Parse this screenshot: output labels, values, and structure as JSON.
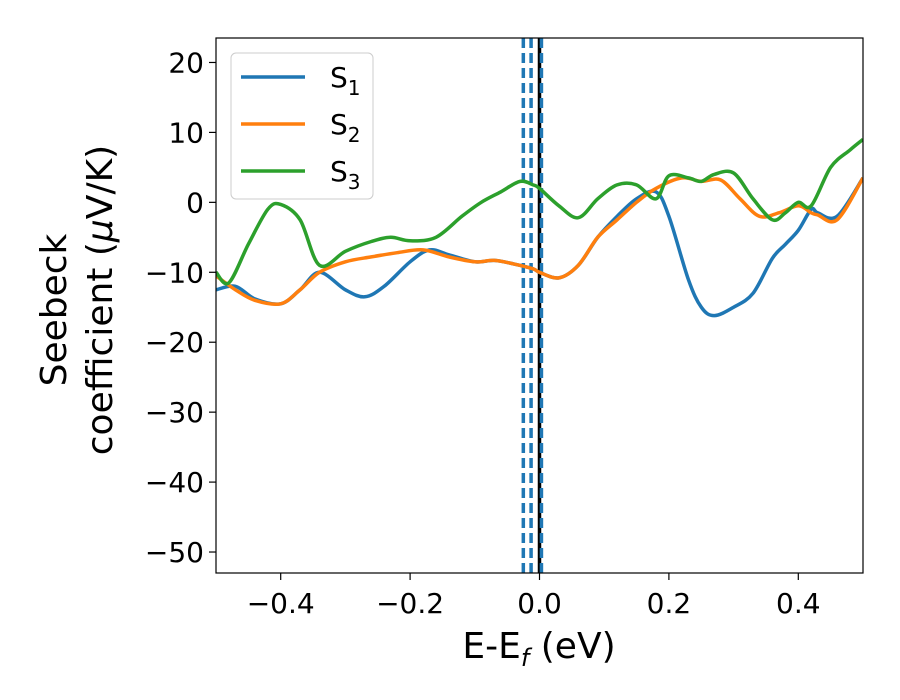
{
  "chart_data": {
    "type": "line",
    "xlabel": {
      "main": "E-E",
      "sub": "f",
      "rest": " (eV)"
    },
    "ylabel": {
      "line1": "Seebeck",
      "line2a": "coefficient  (",
      "line2mu": "μ",
      "line2b": "V/K)"
    },
    "xlim": [
      -0.5,
      0.5
    ],
    "ylim": [
      -53,
      23.5
    ],
    "xticks": [
      -0.4,
      -0.2,
      0.0,
      0.2,
      0.4
    ],
    "xtick_labels": [
      "−0.4",
      "−0.2",
      "0.0",
      "0.2",
      "0.4"
    ],
    "yticks": [
      20,
      10,
      0,
      -10,
      -20,
      -30,
      -40,
      -50
    ],
    "ytick_labels": [
      "20",
      "10",
      "0",
      "−10",
      "−20",
      "−30",
      "−40",
      "−50"
    ],
    "legend_position": "top-left",
    "series": [
      {
        "name": "S",
        "sub": "1",
        "color": "#1f77b4",
        "x": [
          -0.5,
          -0.47,
          -0.44,
          -0.4,
          -0.37,
          -0.34,
          -0.3,
          -0.27,
          -0.24,
          -0.2,
          -0.17,
          -0.14,
          -0.1,
          -0.07,
          -0.04,
          -0.01,
          0.0,
          0.03,
          0.06,
          0.09,
          0.12,
          0.15,
          0.18,
          0.2,
          0.23,
          0.25,
          0.27,
          0.3,
          0.33,
          0.36,
          0.38,
          0.4,
          0.42,
          0.43,
          0.46,
          0.5
        ],
        "y": [
          -12.5,
          -12.0,
          -13.8,
          -14.5,
          -12.5,
          -10.0,
          -12.5,
          -13.5,
          -12.0,
          -8.5,
          -6.8,
          -7.5,
          -8.5,
          -8.3,
          -8.8,
          -9.5,
          -10.0,
          -10.8,
          -9.0,
          -5.0,
          -2.0,
          0.5,
          1.5,
          -2.0,
          -11.0,
          -15.0,
          -16.2,
          -15.0,
          -13.0,
          -8.0,
          -6.0,
          -4.0,
          -1.0,
          -1.5,
          -2.0,
          3.5
        ]
      },
      {
        "name": "S",
        "sub": "2",
        "color": "#ff7f0e",
        "x": [
          -0.5,
          -0.47,
          -0.44,
          -0.4,
          -0.37,
          -0.34,
          -0.3,
          -0.26,
          -0.22,
          -0.18,
          -0.14,
          -0.1,
          -0.07,
          -0.04,
          -0.01,
          0.0,
          0.03,
          0.06,
          0.09,
          0.12,
          0.15,
          0.18,
          0.22,
          0.25,
          0.28,
          0.31,
          0.34,
          0.37,
          0.4,
          0.42,
          0.43,
          0.46,
          0.5
        ],
        "y": [
          -10.5,
          -12.5,
          -14.0,
          -14.5,
          -12.5,
          -10.0,
          -8.5,
          -7.8,
          -7.2,
          -6.8,
          -7.8,
          -8.5,
          -8.3,
          -8.8,
          -9.5,
          -10.0,
          -10.8,
          -9.0,
          -5.0,
          -2.5,
          0.0,
          2.0,
          3.5,
          3.0,
          3.2,
          0.5,
          -2.0,
          -1.5,
          -0.5,
          -1.5,
          -1.8,
          -2.5,
          3.5
        ]
      },
      {
        "name": "S",
        "sub": "3",
        "color": "#2ca02c",
        "x": [
          -0.5,
          -0.48,
          -0.45,
          -0.42,
          -0.4,
          -0.37,
          -0.34,
          -0.3,
          -0.26,
          -0.23,
          -0.2,
          -0.16,
          -0.12,
          -0.09,
          -0.06,
          -0.03,
          -0.01,
          0.0,
          0.03,
          0.06,
          0.09,
          0.12,
          0.15,
          0.18,
          0.2,
          0.23,
          0.25,
          0.27,
          0.3,
          0.33,
          0.36,
          0.38,
          0.4,
          0.42,
          0.45,
          0.48,
          0.5
        ],
        "y": [
          -10.0,
          -11.5,
          -6.0,
          -1.0,
          -0.3,
          -2.5,
          -9.0,
          -7.0,
          -5.6,
          -5.0,
          -5.5,
          -5.0,
          -2.0,
          0.0,
          1.5,
          3.0,
          2.5,
          2.0,
          -0.5,
          -2.2,
          0.5,
          2.5,
          2.5,
          0.5,
          3.8,
          3.5,
          3.0,
          4.0,
          4.2,
          0.5,
          -2.5,
          -1.5,
          0.0,
          -0.5,
          5.0,
          7.5,
          9.0
        ]
      }
    ],
    "vlines": [
      {
        "x": 0.0,
        "color": "#000000",
        "style": "solid"
      },
      {
        "x": -0.025,
        "color": "#1f77b4",
        "style": "dashed"
      },
      {
        "x": -0.013,
        "color": "#1f77b4",
        "style": "dashed"
      },
      {
        "x": 0.003,
        "color": "#1f77b4",
        "style": "dashed"
      }
    ]
  }
}
